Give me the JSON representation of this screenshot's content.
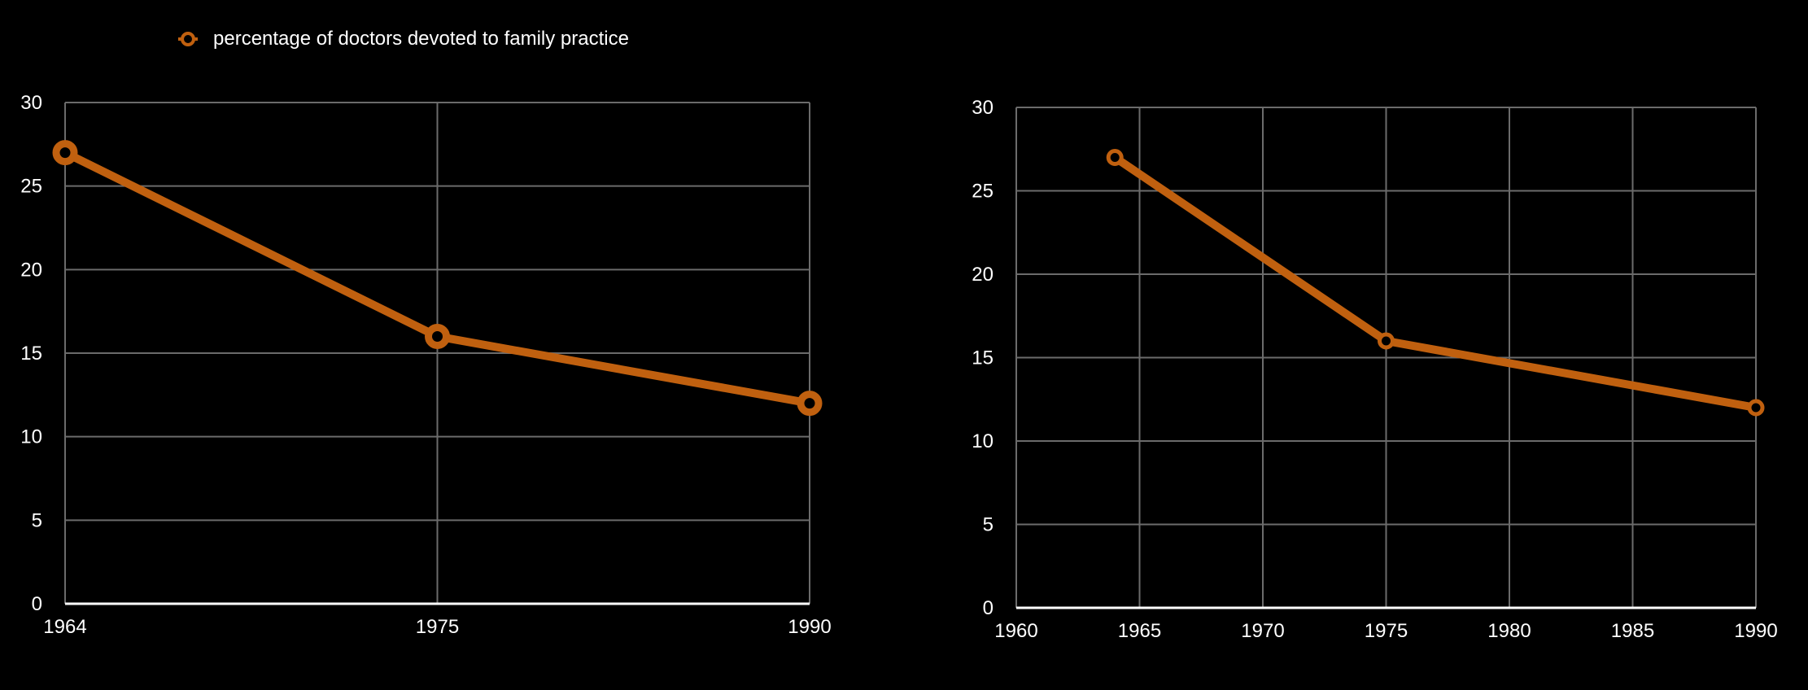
{
  "legend": {
    "label": "percentage of doctors devoted to family practice",
    "icon": "circle-marker-icon",
    "color": "#c0600f"
  },
  "colors": {
    "series": "#c0600f",
    "grid": "#6b6b6b",
    "axis": "#ffffff",
    "background": "#000000"
  },
  "chart_data": [
    {
      "type": "line",
      "x_scale": "categorical",
      "categories": [
        "1964",
        "1975",
        "1990"
      ],
      "series": [
        {
          "name": "percentage of doctors devoted to family practice",
          "values": [
            27,
            16,
            12
          ]
        }
      ],
      "xticks": [
        "1964",
        "1975",
        "1990"
      ],
      "yticks": [
        0,
        5,
        10,
        15,
        20,
        25,
        30
      ],
      "ylim": [
        0,
        30
      ],
      "grid": true,
      "legend": "top-left",
      "title": "",
      "xlabel": "",
      "ylabel": ""
    },
    {
      "type": "line",
      "x_scale": "linear",
      "x": [
        1964,
        1975,
        1990
      ],
      "series": [
        {
          "name": "percentage of doctors devoted to family practice",
          "values": [
            27,
            16,
            12
          ]
        }
      ],
      "xticks": [
        1960,
        1965,
        1970,
        1975,
        1980,
        1985,
        1990
      ],
      "yticks": [
        0,
        5,
        10,
        15,
        20,
        25,
        30
      ],
      "xlim": [
        1960,
        1990
      ],
      "ylim": [
        0,
        30
      ],
      "grid": true,
      "title": "",
      "xlabel": "",
      "ylabel": ""
    }
  ]
}
